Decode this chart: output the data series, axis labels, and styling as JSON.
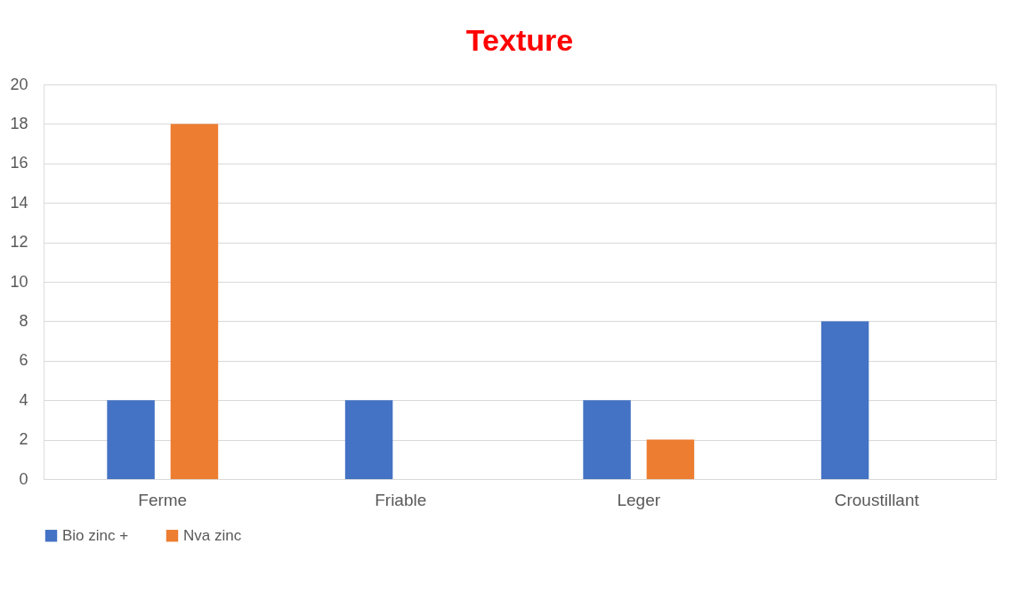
{
  "chart_data": {
    "type": "bar",
    "title": "Texture",
    "categories": [
      "Ferme",
      "Friable",
      "Leger",
      "Croustillant"
    ],
    "series": [
      {
        "name": "Bio zinc +",
        "color": "#4472c4",
        "values": [
          4,
          4,
          4,
          8
        ]
      },
      {
        "name": "Nva zinc",
        "color": "#ed7d31",
        "values": [
          18,
          0,
          2,
          0
        ]
      }
    ],
    "ylim": [
      0,
      20
    ],
    "yticks": [
      0,
      2,
      4,
      6,
      8,
      10,
      12,
      14,
      16,
      18,
      20
    ],
    "grid": "y",
    "legend": "bottom"
  }
}
